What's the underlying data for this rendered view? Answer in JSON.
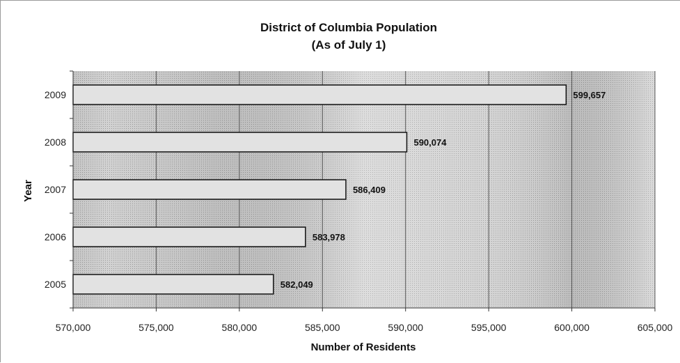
{
  "chart_data": {
    "type": "bar",
    "orientation": "horizontal",
    "title": "District of Columbia Population",
    "subtitle": "(As of July 1)",
    "xlabel": "Number of Residents",
    "ylabel": "Year",
    "categories": [
      "2009",
      "2008",
      "2007",
      "2006",
      "2005"
    ],
    "values": [
      599657,
      590074,
      586409,
      583978,
      582049
    ],
    "data_labels": [
      "599,657",
      "590,074",
      "586,409",
      "583,978",
      "582,049"
    ],
    "xlim": [
      570000,
      605000
    ],
    "x_ticks": [
      570000,
      575000,
      580000,
      585000,
      590000,
      595000,
      600000,
      605000
    ],
    "x_tick_labels": [
      "570,000",
      "575,000",
      "580,000",
      "585,000",
      "590,000",
      "595,000",
      "600,000",
      "605,000"
    ],
    "grid": "vertical",
    "legend": "none",
    "colors": {
      "bar_fill": "#e2e2e2",
      "bar_stroke": "#111111",
      "grid": "#555555",
      "plot_bg": "#c8c8c8"
    }
  }
}
